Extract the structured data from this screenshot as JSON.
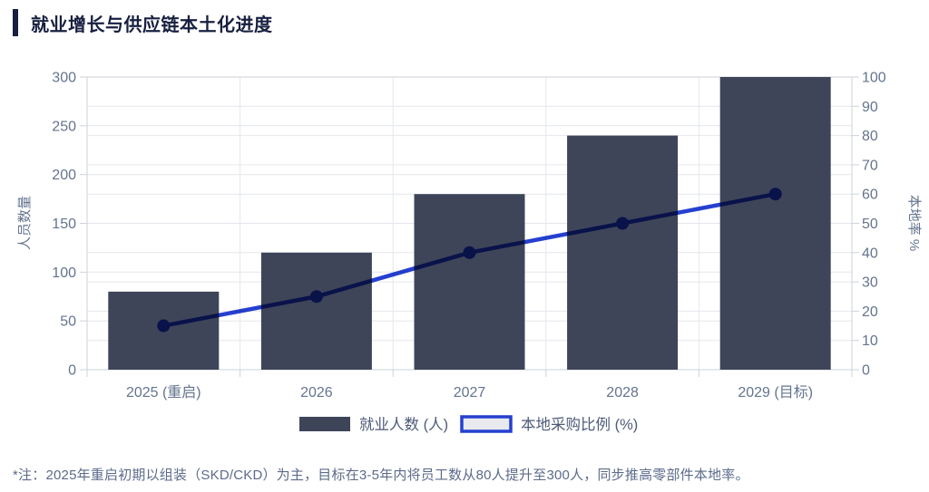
{
  "page": {
    "title": "就业增长与供应链本土化进度",
    "footnote": "*注：2025年重启初期以组装（SKD/CKD）为主，目标在3-5年内将员工数从80人提升至300人，同步推高零部件本地率。"
  },
  "colors": {
    "accent": "#182040",
    "title_text": "#182040",
    "bar_fill": "#3e4559",
    "line_stroke": "#2540d0",
    "axis_text": "#64748f",
    "legend_text": "#4d5a78",
    "footnote_text": "#5c6b8a",
    "grid": "#e4e7ec",
    "spine": "#cdd2da",
    "legend_line_swatch_fill": "#e8eaee"
  },
  "chart_data": {
    "type": "bar+line",
    "title": "就业增长与供应链本土化进度",
    "categories": [
      "2025 (重启)",
      "2026",
      "2027",
      "2028",
      "2029 (目标)"
    ],
    "series": [
      {
        "name": "就业人数 (人)",
        "type": "bar",
        "axis": "left",
        "values": [
          80,
          120,
          180,
          240,
          300
        ]
      },
      {
        "name": "本地采购比例 (%)",
        "type": "line",
        "axis": "right",
        "values": [
          15,
          25,
          40,
          50,
          60
        ]
      }
    ],
    "left_axis": {
      "label": "人员数量",
      "min": 0,
      "max": 300,
      "step": 50,
      "ticks": [
        "0",
        "50",
        "100",
        "150",
        "200",
        "250",
        "300"
      ]
    },
    "right_axis": {
      "label": "本地率 %",
      "min": 0,
      "max": 100,
      "step": 10,
      "ticks": [
        "0",
        "10",
        "20",
        "30",
        "40",
        "50",
        "60",
        "70",
        "80",
        "90",
        "100"
      ]
    },
    "grid": true,
    "legend_position": "bottom"
  }
}
